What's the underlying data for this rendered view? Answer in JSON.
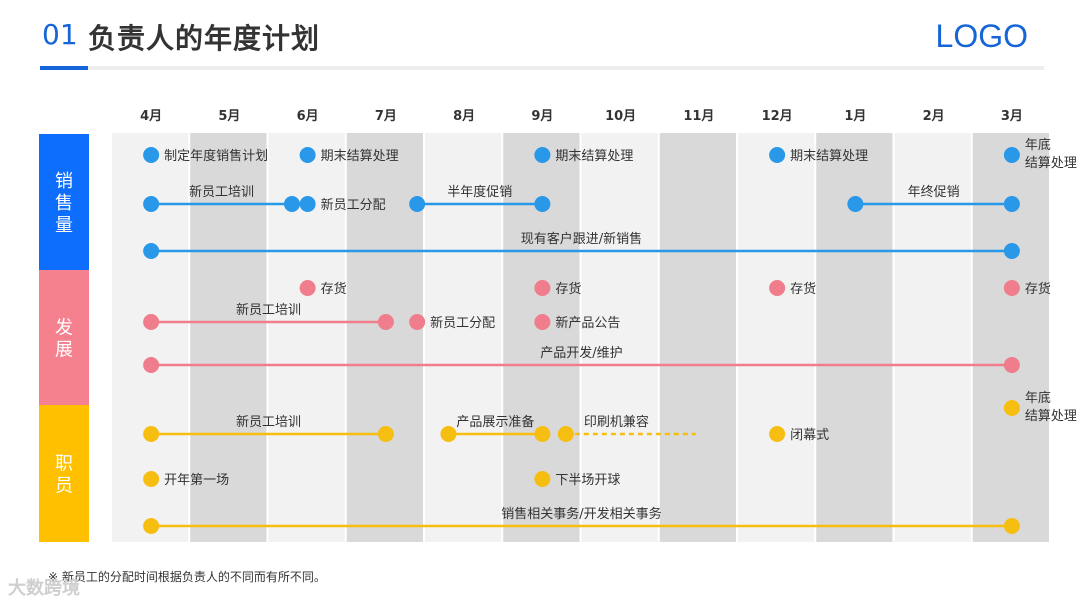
{
  "header": {
    "number": "01",
    "title": "负责人的年度计划",
    "logo": "LOGO"
  },
  "months": [
    "4月",
    "5月",
    "6月",
    "7月",
    "8月",
    "9月",
    "10月",
    "11月",
    "12月",
    "1月",
    "2月",
    "3月"
  ],
  "categories": [
    {
      "id": "sales",
      "label": "销售量",
      "color": "#0d6efd",
      "dot": "#2a98e8"
    },
    {
      "id": "dev",
      "label": "发展",
      "color": "#f5818f",
      "dot": "#ef7d8b"
    },
    {
      "id": "staff",
      "label": "职员",
      "color": "#ffc000",
      "dot": "#f7be12"
    }
  ],
  "events": [
    {
      "cat": 0,
      "row": 0,
      "type": "point",
      "m": 0,
      "label": "制定年度销售计划"
    },
    {
      "cat": 0,
      "row": 0,
      "type": "point",
      "m": 2,
      "label": "期末结算处理"
    },
    {
      "cat": 0,
      "row": 0,
      "type": "point",
      "m": 5,
      "label": "期末结算处理"
    },
    {
      "cat": 0,
      "row": 0,
      "type": "point",
      "m": 8,
      "label": "期末结算处理"
    },
    {
      "cat": 0,
      "row": 0,
      "type": "point",
      "m": 11,
      "label": "年底\n结算处理"
    },
    {
      "cat": 0,
      "row": 1,
      "type": "span",
      "from": 0,
      "to": 1.8,
      "label": "新员工培训"
    },
    {
      "cat": 0,
      "row": 1,
      "type": "point",
      "m": 2,
      "label": "新员工分配"
    },
    {
      "cat": 0,
      "row": 1,
      "type": "span",
      "from": 3.4,
      "to": 5,
      "label": "半年度促销"
    },
    {
      "cat": 0,
      "row": 1,
      "type": "span",
      "from": 9,
      "to": 11,
      "label": "年终促销"
    },
    {
      "cat": 0,
      "row": 2,
      "type": "span",
      "from": 0,
      "to": 11,
      "label": "现有客户跟进/新销售"
    },
    {
      "cat": 1,
      "row": 0,
      "type": "point",
      "m": 2,
      "label": "存货"
    },
    {
      "cat": 1,
      "row": 0,
      "type": "point",
      "m": 5,
      "label": "存货"
    },
    {
      "cat": 1,
      "row": 0,
      "type": "point",
      "m": 8,
      "label": "存货"
    },
    {
      "cat": 1,
      "row": 0,
      "type": "point",
      "m": 11,
      "label": "存货"
    },
    {
      "cat": 1,
      "row": 1,
      "type": "span",
      "from": 0,
      "to": 3,
      "label": "新员工培训"
    },
    {
      "cat": 1,
      "row": 1,
      "type": "point",
      "m": 3.4,
      "label": "新员工分配"
    },
    {
      "cat": 1,
      "row": 1,
      "type": "point",
      "m": 5,
      "label": "新产品公告"
    },
    {
      "cat": 1,
      "row": 2,
      "type": "span",
      "from": 0,
      "to": 11,
      "label": "产品开发/维护"
    },
    {
      "cat": 2,
      "row": 0,
      "type": "point",
      "m": 11,
      "label": "年底\n结算处理"
    },
    {
      "cat": 2,
      "row": 1,
      "type": "span",
      "from": 0,
      "to": 3,
      "label": "新员工培训"
    },
    {
      "cat": 2,
      "row": 1,
      "type": "span",
      "from": 3.8,
      "to": 5,
      "label": "产品展示准备"
    },
    {
      "cat": 2,
      "row": 1,
      "type": "span",
      "from": 5.3,
      "to": 6.5,
      "dashed": true,
      "label": "印刷机兼容"
    },
    {
      "cat": 2,
      "row": 1,
      "type": "point",
      "m": 8,
      "label": "闭幕式"
    },
    {
      "cat": 2,
      "row": 2,
      "type": "point",
      "m": 0,
      "label": "开年第一场"
    },
    {
      "cat": 2,
      "row": 2,
      "type": "point",
      "m": 5,
      "label": "下半场开球"
    },
    {
      "cat": 2,
      "row": 3,
      "type": "span",
      "from": 0,
      "to": 11,
      "label": "销售相关事务/开发相关事务"
    }
  ],
  "footnote": "※   新员工的分配时间根据负责人的不同而有所不同。",
  "watermark": "大数跨境"
}
